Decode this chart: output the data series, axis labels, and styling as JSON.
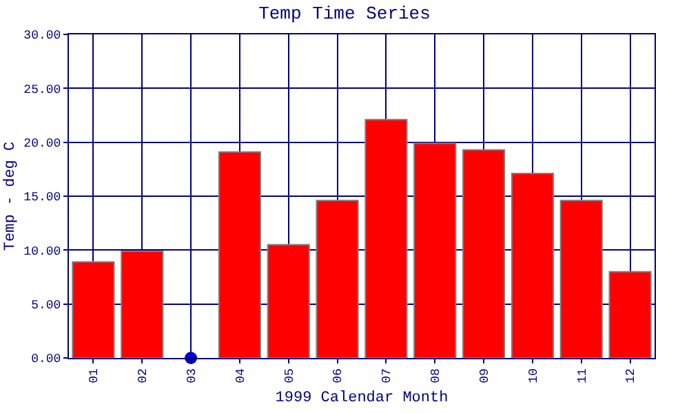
{
  "chart_data": {
    "type": "bar",
    "title": "Temp Time Series",
    "xlabel": "1999 Calendar Month",
    "ylabel": "Temp - deg C",
    "categories": [
      "01",
      "02",
      "03",
      "04",
      "05",
      "06",
      "07",
      "08",
      "09",
      "10",
      "11",
      "12"
    ],
    "series": [
      {
        "color": "#ff0000",
        "values": [
          8.9,
          9.9,
          null,
          19.1,
          10.5,
          14.6,
          22.1,
          19.9,
          19.3,
          17.1,
          14.6,
          8.0
        ]
      },
      {
        "type": "scatter",
        "color": "#0000cc",
        "x": [
          "03"
        ],
        "values": [
          0
        ]
      }
    ],
    "ylim": [
      0,
      30
    ],
    "yticks": [
      {
        "value": 0,
        "label": "0.00"
      },
      {
        "value": 5,
        "label": "5.00"
      },
      {
        "value": 10,
        "label": "10.00"
      },
      {
        "value": 15,
        "label": "15.00"
      },
      {
        "value": 20,
        "label": "20.00"
      },
      {
        "value": 25,
        "label": "25.00"
      },
      {
        "value": 30,
        "label": "30.00"
      }
    ],
    "grid": true,
    "marker": "circle"
  }
}
